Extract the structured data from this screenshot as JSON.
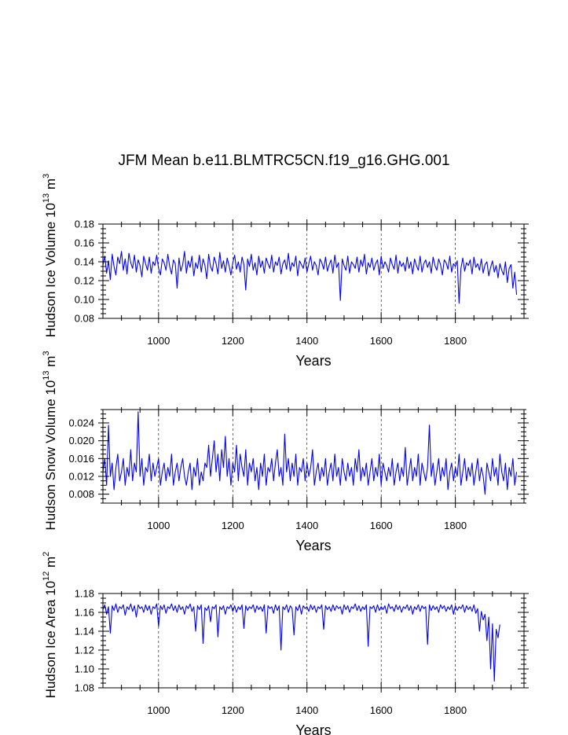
{
  "figure": {
    "title": "JFM Mean b.e11.BLMTRC5CN.f19_g16.GHG.001"
  },
  "chart_data": [
    {
      "type": "line",
      "id": "ice-volume",
      "ylabel_main": "Hudson Ice Volume 10",
      "ylabel_exp": "13",
      "ylabel_unit": " m",
      "ylabel_unit_exp": "3",
      "xlabel": "Years",
      "xlim": [
        850,
        1985
      ],
      "ylim": [
        0.08,
        0.18
      ],
      "xticks": [
        1000,
        1200,
        1400,
        1600,
        1800
      ],
      "yticks": [
        0.08,
        0.1,
        0.12,
        0.14,
        0.16,
        0.18
      ],
      "ytick_labels": [
        "0.08",
        "0.10",
        "0.12",
        "0.14",
        "0.16",
        "0.18"
      ],
      "grid": "vertical dashed at major x ticks",
      "color": "#0000ff",
      "series": [
        {
          "x_start": 850,
          "x_step": 5,
          "values": [
            0.136,
            0.146,
            0.128,
            0.141,
            0.121,
            0.148,
            0.135,
            0.126,
            0.145,
            0.138,
            0.151,
            0.131,
            0.143,
            0.127,
            0.149,
            0.139,
            0.133,
            0.147,
            0.129,
            0.142,
            0.136,
            0.124,
            0.146,
            0.138,
            0.131,
            0.145,
            0.128,
            0.14,
            0.136,
            0.147,
            0.133,
            0.126,
            0.143,
            0.139,
            0.131,
            0.148,
            0.135,
            0.127,
            0.142,
            0.138,
            0.112,
            0.144,
            0.13,
            0.137,
            0.151,
            0.128,
            0.141,
            0.134,
            0.146,
            0.125,
            0.139,
            0.133,
            0.147,
            0.129,
            0.143,
            0.136,
            0.122,
            0.148,
            0.135,
            0.13,
            0.145,
            0.138,
            0.127,
            0.15,
            0.133,
            0.141,
            0.129,
            0.144,
            0.136,
            0.126,
            0.139,
            0.147,
            0.132,
            0.14,
            0.129,
            0.145,
            0.137,
            0.11,
            0.143,
            0.135,
            0.148,
            0.131,
            0.139,
            0.126,
            0.146,
            0.134,
            0.141,
            0.128,
            0.144,
            0.138,
            0.133,
            0.147,
            0.129,
            0.14,
            0.136,
            0.145,
            0.127,
            0.138,
            0.142,
            0.132,
            0.149,
            0.13,
            0.139,
            0.135,
            0.146,
            0.125,
            0.141,
            0.137,
            0.133,
            0.144,
            0.129,
            0.138,
            0.146,
            0.131,
            0.14,
            0.136,
            0.126,
            0.143,
            0.139,
            0.132,
            0.145,
            0.13,
            0.137,
            0.142,
            0.128,
            0.147,
            0.134,
            0.139,
            0.099,
            0.143,
            0.136,
            0.131,
            0.146,
            0.128,
            0.14,
            0.137,
            0.133,
            0.145,
            0.129,
            0.142,
            0.135,
            0.148,
            0.127,
            0.139,
            0.134,
            0.144,
            0.131,
            0.138,
            0.142,
            0.126,
            0.146,
            0.133,
            0.14,
            0.136,
            0.129,
            0.144,
            0.137,
            0.132,
            0.147,
            0.128,
            0.141,
            0.135,
            0.139,
            0.13,
            0.145,
            0.133,
            0.14,
            0.127,
            0.143,
            0.136,
            0.131,
            0.146,
            0.129,
            0.138,
            0.142,
            0.134,
            0.14,
            0.128,
            0.145,
            0.136,
            0.131,
            0.143,
            0.137,
            0.126,
            0.142,
            0.139,
            0.132,
            0.146,
            0.129,
            0.138,
            0.135,
            0.141,
            0.096,
            0.133,
            0.144,
            0.13,
            0.139,
            0.136,
            0.142,
            0.127,
            0.145,
            0.134,
            0.138,
            0.131,
            0.143,
            0.128,
            0.137,
            0.14,
            0.125,
            0.134,
            0.141,
            0.129,
            0.136,
            0.123,
            0.138,
            0.131,
            0.126,
            0.14,
            0.118,
            0.133,
            0.137,
            0.112,
            0.129,
            0.105
          ]
        }
      ]
    },
    {
      "type": "line",
      "id": "snow-volume",
      "ylabel_main": "Hudson Snow Volume 10",
      "ylabel_exp": "13",
      "ylabel_unit": " m",
      "ylabel_unit_exp": "3",
      "xlabel": "Years",
      "xlim": [
        850,
        1985
      ],
      "ylim": [
        0.006,
        0.027
      ],
      "xticks": [
        1000,
        1200,
        1400,
        1600,
        1800
      ],
      "yticks": [
        0.008,
        0.012,
        0.016,
        0.02,
        0.024
      ],
      "ytick_labels": [
        "0.008",
        "0.012",
        "0.016",
        "0.020",
        "0.024"
      ],
      "grid": "vertical dashed at major x ticks",
      "color": "#0000ff",
      "series": [
        {
          "x_start": 850,
          "x_step": 5,
          "values": [
            0.013,
            0.016,
            0.01,
            0.0235,
            0.012,
            0.015,
            0.009,
            0.014,
            0.017,
            0.011,
            0.013,
            0.016,
            0.01,
            0.014,
            0.012,
            0.018,
            0.011,
            0.015,
            0.013,
            0.0265,
            0.012,
            0.016,
            0.01,
            0.014,
            0.013,
            0.017,
            0.011,
            0.015,
            0.012,
            0.014,
            0.016,
            0.01,
            0.013,
            0.015,
            0.011,
            0.014,
            0.012,
            0.017,
            0.01,
            0.013,
            0.015,
            0.011,
            0.014,
            0.016,
            0.012,
            0.01,
            0.013,
            0.015,
            0.009,
            0.014,
            0.012,
            0.016,
            0.01,
            0.013,
            0.011,
            0.015,
            0.014,
            0.019,
            0.012,
            0.016,
            0.02,
            0.013,
            0.017,
            0.011,
            0.018,
            0.014,
            0.021,
            0.012,
            0.016,
            0.01,
            0.015,
            0.013,
            0.019,
            0.011,
            0.017,
            0.014,
            0.012,
            0.018,
            0.01,
            0.015,
            0.013,
            0.016,
            0.011,
            0.014,
            0.009,
            0.015,
            0.012,
            0.017,
            0.01,
            0.014,
            0.013,
            0.016,
            0.011,
            0.015,
            0.018,
            0.012,
            0.014,
            0.01,
            0.0215,
            0.013,
            0.016,
            0.011,
            0.015,
            0.012,
            0.017,
            0.01,
            0.014,
            0.013,
            0.016,
            0.011,
            0.015,
            0.012,
            0.014,
            0.018,
            0.01,
            0.013,
            0.015,
            0.011,
            0.014,
            0.012,
            0.016,
            0.01,
            0.013,
            0.015,
            0.011,
            0.017,
            0.012,
            0.014,
            0.01,
            0.016,
            0.013,
            0.011,
            0.015,
            0.012,
            0.014,
            0.01,
            0.016,
            0.013,
            0.018,
            0.011,
            0.014,
            0.012,
            0.015,
            0.01,
            0.013,
            0.016,
            0.011,
            0.014,
            0.012,
            0.017,
            0.01,
            0.015,
            0.013,
            0.011,
            0.014,
            0.012,
            0.016,
            0.01,
            0.013,
            0.015,
            0.011,
            0.014,
            0.012,
            0.0185,
            0.01,
            0.013,
            0.016,
            0.011,
            0.014,
            0.012,
            0.017,
            0.01,
            0.015,
            0.013,
            0.011,
            0.014,
            0.0235,
            0.012,
            0.015,
            0.01,
            0.013,
            0.016,
            0.011,
            0.014,
            0.012,
            0.016,
            0.009,
            0.013,
            0.015,
            0.011,
            0.014,
            0.012,
            0.017,
            0.01,
            0.013,
            0.016,
            0.011,
            0.014,
            0.012,
            0.015,
            0.01,
            0.013,
            0.016,
            0.011,
            0.014,
            0.012,
            0.008,
            0.015,
            0.013,
            0.011,
            0.016,
            0.012,
            0.014,
            0.01,
            0.017,
            0.013,
            0.011,
            0.015,
            0.009,
            0.014,
            0.012,
            0.016,
            0.01,
            0.013
          ]
        }
      ]
    },
    {
      "type": "line",
      "id": "ice-area",
      "ylabel_main": "Hudson Ice Area 10",
      "ylabel_exp": "12",
      "ylabel_unit": " m",
      "ylabel_unit_exp": "2",
      "xlabel": "Years",
      "xlim": [
        850,
        1985
      ],
      "ylim": [
        1.08,
        1.18
      ],
      "xticks": [
        1000,
        1200,
        1400,
        1600,
        1800
      ],
      "yticks": [
        1.08,
        1.1,
        1.12,
        1.14,
        1.16,
        1.18
      ],
      "ytick_labels": [
        "1.08",
        "1.10",
        "1.12",
        "1.14",
        "1.16",
        "1.18"
      ],
      "grid": "vertical dashed at major x ticks",
      "color": "#0000ff",
      "series": [
        {
          "x_start": 850,
          "x_step": 5,
          "values": [
            1.163,
            1.168,
            1.158,
            1.166,
            1.138,
            1.167,
            1.162,
            1.169,
            1.16,
            1.166,
            1.164,
            1.168,
            1.157,
            1.166,
            1.163,
            1.169,
            1.161,
            1.167,
            1.155,
            1.168,
            1.164,
            1.166,
            1.16,
            1.168,
            1.162,
            1.167,
            1.158,
            1.166,
            1.164,
            1.169,
            1.145,
            1.167,
            1.163,
            1.168,
            1.159,
            1.166,
            1.164,
            1.169,
            1.162,
            1.167,
            1.16,
            1.168,
            1.163,
            1.166,
            1.158,
            1.167,
            1.164,
            1.169,
            1.161,
            1.166,
            1.14,
            1.167,
            1.163,
            1.168,
            1.127,
            1.165,
            1.162,
            1.167,
            1.15,
            1.166,
            1.164,
            1.168,
            1.134,
            1.166,
            1.163,
            1.167,
            1.158,
            1.166,
            1.164,
            1.168,
            1.161,
            1.167,
            1.16,
            1.166,
            1.163,
            1.168,
            1.143,
            1.167,
            1.162,
            1.166,
            1.164,
            1.168,
            1.16,
            1.167,
            1.163,
            1.166,
            1.161,
            1.168,
            1.138,
            1.167,
            1.164,
            1.166,
            1.159,
            1.168,
            1.162,
            1.167,
            1.12,
            1.166,
            1.163,
            1.168,
            1.16,
            1.167,
            1.164,
            1.136,
            1.166,
            1.162,
            1.168,
            1.158,
            1.167,
            1.164,
            1.166,
            1.161,
            1.168,
            1.163,
            1.167,
            1.16,
            1.166,
            1.164,
            1.168,
            1.142,
            1.167,
            1.163,
            1.166,
            1.161,
            1.168,
            1.162,
            1.167,
            1.164,
            1.166,
            1.158,
            1.168,
            1.163,
            1.167,
            1.16,
            1.166,
            1.164,
            1.169,
            1.162,
            1.167,
            1.161,
            1.166,
            1.163,
            1.168,
            1.124,
            1.166,
            1.164,
            1.167,
            1.16,
            1.168,
            1.162,
            1.166,
            1.163,
            1.167,
            1.159,
            1.169,
            1.164,
            1.166,
            1.161,
            1.168,
            1.163,
            1.167,
            1.16,
            1.166,
            1.164,
            1.168,
            1.162,
            1.167,
            1.158,
            1.166,
            1.163,
            1.168,
            1.161,
            1.167,
            1.164,
            1.166,
            1.126,
            1.168,
            1.162,
            1.167,
            1.163,
            1.166,
            1.16,
            1.168,
            1.164,
            1.167,
            1.161,
            1.166,
            1.163,
            1.168,
            1.158,
            1.167,
            1.162,
            1.166,
            1.164,
            1.168,
            1.16,
            1.167,
            1.163,
            1.166,
            1.161,
            1.168,
            1.159,
            1.164,
            1.14,
            1.161,
            1.152,
            1.158,
            1.13,
            1.155,
            1.1,
            1.148,
            1.087,
            1.142,
            1.133,
            1.147
          ]
        }
      ]
    }
  ]
}
